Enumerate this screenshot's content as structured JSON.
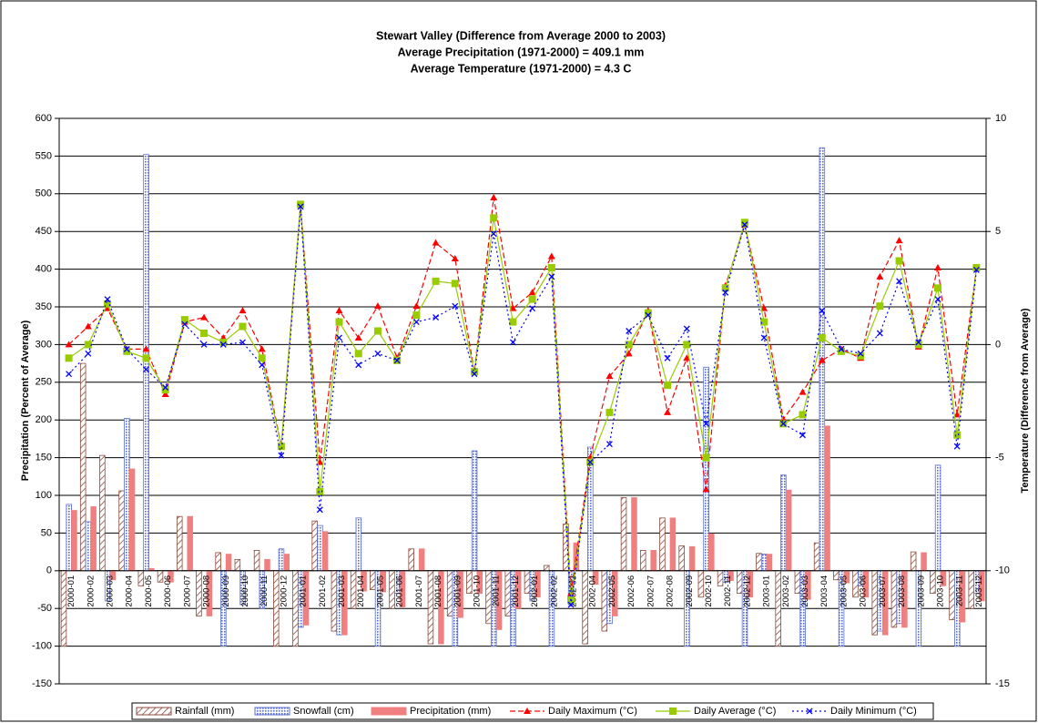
{
  "chart_data": {
    "type": "bar",
    "title": [
      "Stewart Valley (Difference from Average 2000 to 2003)",
      "Average Precipitation (1971-2000) = 409.1 mm",
      "Average Temperature (1971-2000) = 4.3 C"
    ],
    "y_label": "Precipitation (Percent of Average)",
    "y2_label": "Temperature (Difference from Average)",
    "ylim": [
      -150,
      600
    ],
    "yticks": [
      -150,
      -100,
      -50,
      0,
      50,
      100,
      150,
      200,
      250,
      300,
      350,
      400,
      450,
      500,
      550,
      600
    ],
    "y2lim": [
      -15,
      10
    ],
    "y2ticks": [
      -15,
      -10,
      -5,
      0,
      5,
      10
    ],
    "grid": true,
    "legend": "bottom",
    "categories": [
      "2000-01",
      "2000-02",
      "2000-03",
      "2000-04",
      "2000-05",
      "2000-06",
      "2000-07",
      "2000-08",
      "2000-09",
      "2000-10",
      "2000-11",
      "2000-12",
      "2001-01",
      "2001-02",
      "2001-03",
      "2001-04",
      "2001-05",
      "2001-06",
      "2001-07",
      "2001-08",
      "2001-09",
      "2001-10",
      "2001-11",
      "2001-12",
      "2002-01",
      "2002-02",
      "2002-03",
      "2002-04",
      "2002-05",
      "2002-06",
      "2002-07",
      "2002-08",
      "2002-09",
      "2002-10",
      "2002-11",
      "2002-12",
      "2003-01",
      "2003-02",
      "2003-03",
      "2003-04",
      "2003-05",
      "2003-06",
      "2003-07",
      "2003-08",
      "2003-09",
      "2003-10",
      "2003-11",
      "2003-12"
    ],
    "series": [
      {
        "name": "Rainfall (mm)",
        "type": "bar",
        "color": "#8b4a3c",
        "values": [
          -100,
          275,
          153,
          106,
          -20,
          -15,
          72,
          -60,
          24,
          15,
          27,
          -100,
          -100,
          66,
          -80,
          -50,
          -25,
          -50,
          29,
          -97,
          -60,
          -30,
          -70,
          -60,
          -30,
          7,
          62,
          -97,
          -80,
          97,
          27,
          70,
          33,
          -35,
          -20,
          -30,
          23,
          -100,
          -30,
          37,
          -12,
          -35,
          -85,
          -75,
          25,
          -30,
          -65,
          -50
        ]
      },
      {
        "name": "Snowfall (cm)",
        "type": "bar",
        "color": "#5a6fd0",
        "values": [
          88,
          65,
          -40,
          202,
          552,
          0,
          0,
          0,
          -100,
          -45,
          -50,
          29,
          -75,
          60,
          -85,
          70,
          -100,
          -30,
          0,
          0,
          -100,
          159,
          -100,
          -100,
          -40,
          -100,
          -45,
          164,
          -70,
          0,
          0,
          0,
          -100,
          270,
          -15,
          -100,
          22,
          127,
          -100,
          561,
          -100,
          -20,
          -80,
          -70,
          -100,
          140,
          -100,
          -30
        ]
      },
      {
        "name": "Precipitation (mm)",
        "type": "bar",
        "color": "#f08080",
        "values": [
          80,
          85,
          -12,
          135,
          3,
          -15,
          72,
          -60,
          22,
          0,
          15,
          22,
          -72,
          52,
          -85,
          -27,
          -28,
          -48,
          29,
          -97,
          -62,
          -30,
          -78,
          -50,
          -35,
          0,
          37,
          -18,
          -60,
          97,
          27,
          70,
          32,
          49,
          -13,
          -35,
          22,
          107,
          -38,
          192,
          -16,
          -35,
          -85,
          -75,
          24,
          -20,
          -68,
          -40
        ]
      },
      {
        "name": "Daily Maximum (°C)",
        "type": "line",
        "axis": "y2",
        "color": "#ff0000",
        "values": [
          0,
          0.8,
          1.6,
          -0.2,
          -0.2,
          -2.2,
          1.0,
          1.2,
          0.3,
          1.5,
          -0.2,
          -4.5,
          6.2,
          -5.2,
          1.5,
          0.3,
          1.7,
          -0.6,
          1.7,
          4.5,
          3.8,
          -1.2,
          6.5,
          1.6,
          2.3,
          3.9,
          -11.0,
          -5.0,
          -1.4,
          -0.4,
          1.5,
          -3.0,
          -0.6,
          -6.4,
          2.6,
          5.3,
          1.6,
          -3.3,
          -2.1,
          -0.7,
          -0.2,
          -0.6,
          3.0,
          4.6,
          -0.1,
          3.4,
          -3.1,
          3.4
        ]
      },
      {
        "name": "Daily Average (°C)",
        "type": "line",
        "axis": "y2",
        "color": "#99cc00",
        "values": [
          -0.6,
          0,
          1.8,
          -0.3,
          -0.6,
          -2.0,
          1.1,
          0.5,
          0.1,
          0.8,
          -0.6,
          -4.5,
          6.2,
          -6.5,
          1.0,
          -0.4,
          0.6,
          -0.7,
          1.3,
          2.8,
          2.7,
          -1.2,
          5.6,
          1.0,
          2.0,
          3.4,
          -11.3,
          -5.2,
          -3.0,
          0,
          1.4,
          -1.8,
          0,
          -5.0,
          2.5,
          5.4,
          1.0,
          -3.5,
          -3.1,
          0.3,
          -0.3,
          -0.5,
          1.7,
          3.7,
          0,
          2.5,
          -4.0,
          3.4
        ]
      },
      {
        "name": "Daily Minimum (°C)",
        "type": "line",
        "axis": "y2",
        "color": "#0000ff",
        "values": [
          -1.3,
          -0.4,
          2.0,
          -0.2,
          -1.1,
          -1.9,
          0.9,
          0,
          0,
          0.1,
          -0.9,
          -4.9,
          6.1,
          -7.3,
          0.3,
          -0.9,
          -0.4,
          -0.7,
          1.0,
          1.2,
          1.7,
          -1.3,
          4.9,
          0.1,
          1.6,
          3.0,
          -11.5,
          -5.2,
          -4.4,
          0.6,
          1.3,
          -0.6,
          0.7,
          -3.5,
          2.3,
          5.3,
          0.3,
          -3.5,
          -4.0,
          1.5,
          -0.2,
          -0.4,
          0.5,
          2.8,
          0.1,
          2.0,
          -4.5,
          3.3
        ]
      }
    ]
  }
}
